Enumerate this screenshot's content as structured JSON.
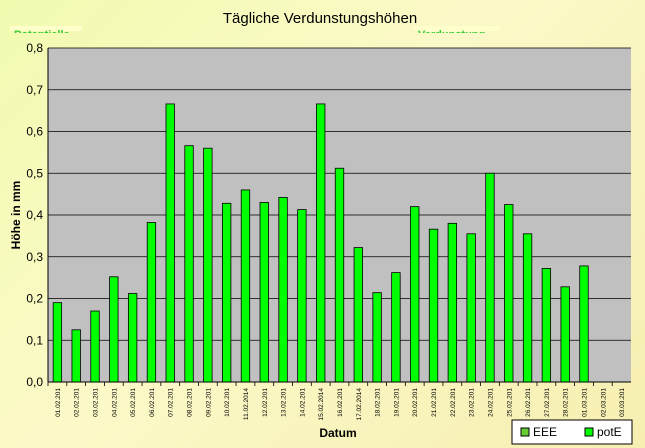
{
  "chart_data": {
    "type": "bar",
    "title": "Tägliche Verdunstungshöhen",
    "xlabel": "Datum",
    "ylabel": "Höhe in mm",
    "ylim": [
      0,
      0.8
    ],
    "yticks": [
      "0,0",
      "0,1",
      "0,2",
      "0,3",
      "0,4",
      "0,5",
      "0,6",
      "0,7",
      "0,8"
    ],
    "grid": true,
    "legend_position": "bottom-right",
    "overlay_labels": [
      "Potentielle",
      "Verdunstung"
    ],
    "categories": [
      "01.02.201",
      "02.02.201",
      "03.02.201",
      "04.02.201",
      "05.02.201",
      "06.02.201",
      "07.02.201",
      "08.02.201",
      "09.02.201",
      "10.02.201",
      "11.02.2014",
      "12.02.201",
      "13.02.201",
      "14.02.201",
      "15.02.2014",
      "16.02.201",
      "17.02.2014",
      "18.02.201",
      "19.02.201",
      "20.02.201",
      "21.02.201",
      "22.02.201",
      "23.02.201",
      "24.02.201",
      "25.02.201",
      "26.02.201",
      "27.02.201",
      "28.02.201",
      "01.03.201",
      "02.03.201",
      "03.03.201"
    ],
    "series": [
      {
        "name": "EEE",
        "color": "#66cc33",
        "values": [
          0,
          0,
          0,
          0,
          0,
          0,
          0,
          0,
          0,
          0,
          0,
          0,
          0,
          0,
          0,
          0,
          0,
          0,
          0,
          0,
          0,
          0,
          0,
          0,
          0,
          0,
          0,
          0,
          0,
          0,
          0
        ]
      },
      {
        "name": "potE",
        "color": "#00ff00",
        "values": [
          0.19,
          0.125,
          0.17,
          0.252,
          0.212,
          0.382,
          0.666,
          0.566,
          0.56,
          0.428,
          0.46,
          0.43,
          0.442,
          0.413,
          0.666,
          0.512,
          0.322,
          0.214,
          0.262,
          0.42,
          0.366,
          0.38,
          0.355,
          0.5,
          0.425,
          0.355,
          0.272,
          0.228,
          0.278,
          0,
          0
        ]
      }
    ]
  }
}
